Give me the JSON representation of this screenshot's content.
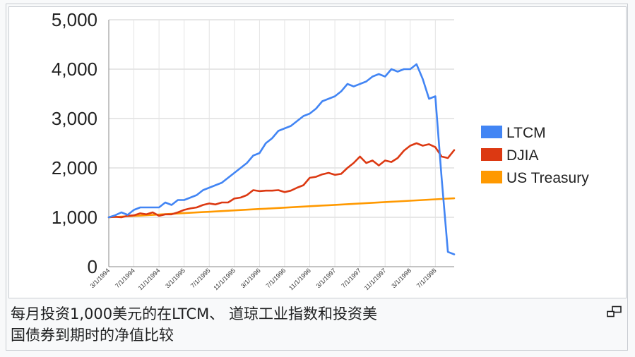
{
  "chart_data": {
    "type": "line",
    "title": "",
    "xlabel": "",
    "ylabel": "",
    "ylim": [
      0,
      5000
    ],
    "yticks": [
      0,
      1000,
      2000,
      3000,
      4000,
      5000
    ],
    "ytick_labels": [
      "0",
      "1,000",
      "2,000",
      "3,000",
      "4,000",
      "5,000"
    ],
    "x_tick_labels": [
      "3/1/1994",
      "7/1/1994",
      "11/1/1994",
      "3/1/1995",
      "7/1/1995",
      "11/1/1995",
      "3/1/1996",
      "7/1/1996",
      "11/1/1996",
      "3/1/1997",
      "7/1/1997",
      "11/1/1997",
      "3/1/1998",
      "7/1/1998"
    ],
    "grid": true,
    "legend_position": "right",
    "series": [
      {
        "name": "LTCM",
        "color": "#4285f4",
        "values": [
          1000,
          1040,
          1100,
          1050,
          1150,
          1200,
          1200,
          1200,
          1200,
          1300,
          1250,
          1350,
          1350,
          1400,
          1450,
          1550,
          1600,
          1650,
          1700,
          1800,
          1900,
          2000,
          2100,
          2250,
          2300,
          2500,
          2600,
          2750,
          2800,
          2850,
          2950,
          3050,
          3100,
          3200,
          3350,
          3400,
          3450,
          3550,
          3700,
          3650,
          3700,
          3750,
          3850,
          3900,
          3850,
          4000,
          3950,
          4000,
          4000,
          4100,
          3800,
          3400,
          3450,
          1800,
          300,
          250
        ]
      },
      {
        "name": "DJIA",
        "color": "#dc3912",
        "values": [
          1000,
          1010,
          1000,
          1030,
          1040,
          1080,
          1060,
          1100,
          1030,
          1060,
          1060,
          1100,
          1150,
          1180,
          1200,
          1250,
          1280,
          1260,
          1300,
          1300,
          1380,
          1400,
          1450,
          1550,
          1530,
          1540,
          1540,
          1550,
          1510,
          1540,
          1600,
          1650,
          1800,
          1820,
          1870,
          1900,
          1860,
          1880,
          2000,
          2100,
          2230,
          2100,
          2150,
          2050,
          2150,
          2120,
          2200,
          2350,
          2450,
          2500,
          2450,
          2480,
          2420,
          2230,
          2200,
          2360
        ]
      },
      {
        "name": "US Treasury",
        "color": "#ff9900",
        "values": [
          1000,
          1007,
          1014,
          1021,
          1028,
          1035,
          1042,
          1049,
          1056,
          1063,
          1070,
          1077,
          1084,
          1091,
          1098,
          1105,
          1112,
          1119,
          1126,
          1133,
          1140,
          1147,
          1154,
          1161,
          1168,
          1175,
          1182,
          1189,
          1196,
          1203,
          1210,
          1217,
          1224,
          1231,
          1238,
          1245,
          1252,
          1259,
          1266,
          1273,
          1280,
          1287,
          1294,
          1301,
          1308,
          1315,
          1322,
          1329,
          1336,
          1343,
          1350,
          1357,
          1364,
          1371,
          1378,
          1385
        ]
      }
    ]
  },
  "caption": {
    "line1": "每月投资1,000美元的在LTCM、 道琼工业指数和投资美",
    "line2": "国债券到期时的净值比较"
  },
  "icons": {
    "magnify": "magnify-icon"
  }
}
